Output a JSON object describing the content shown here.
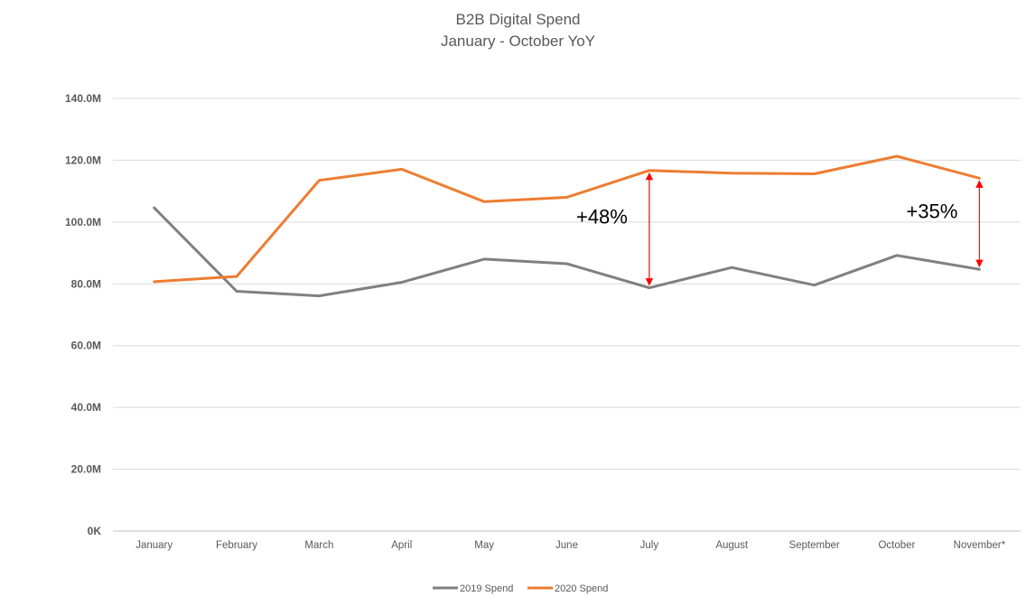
{
  "chart_data": {
    "type": "line",
    "title": "B2B Digital Spend",
    "subtitle": "January - October YoY",
    "xlabel": "",
    "ylabel": "",
    "categories": [
      "January",
      "February",
      "March",
      "April",
      "May",
      "June",
      "July",
      "August",
      "September",
      "October",
      "November*"
    ],
    "y_ticks": [
      "0K",
      "20.0M",
      "40.0M",
      "60.0M",
      "80.0M",
      "100.0M",
      "120.0M",
      "140.0M"
    ],
    "ylim": [
      0,
      140
    ],
    "y_unit": "M",
    "grid": true,
    "legend_position": "bottom",
    "series": [
      {
        "name": "2019 Spend",
        "color": "#808080",
        "values": [
          104.6,
          77.6,
          76.1,
          80.5,
          88.0,
          86.5,
          78.7,
          85.3,
          79.6,
          89.2,
          84.7
        ]
      },
      {
        "name": "2020 Spend",
        "color": "#ED7D31",
        "values": [
          80.7,
          82.4,
          113.5,
          117.1,
          106.6,
          108.0,
          116.7,
          115.8,
          115.6,
          121.3,
          114.2
        ]
      }
    ],
    "annotations": [
      {
        "text": "+48%",
        "category": "July",
        "from": 78.7,
        "to": 116.7,
        "arrow_color": "#FF0000"
      },
      {
        "text": "+35%",
        "category": "November*",
        "from": 84.7,
        "to": 114.2,
        "arrow_color": "#FF0000"
      }
    ]
  }
}
